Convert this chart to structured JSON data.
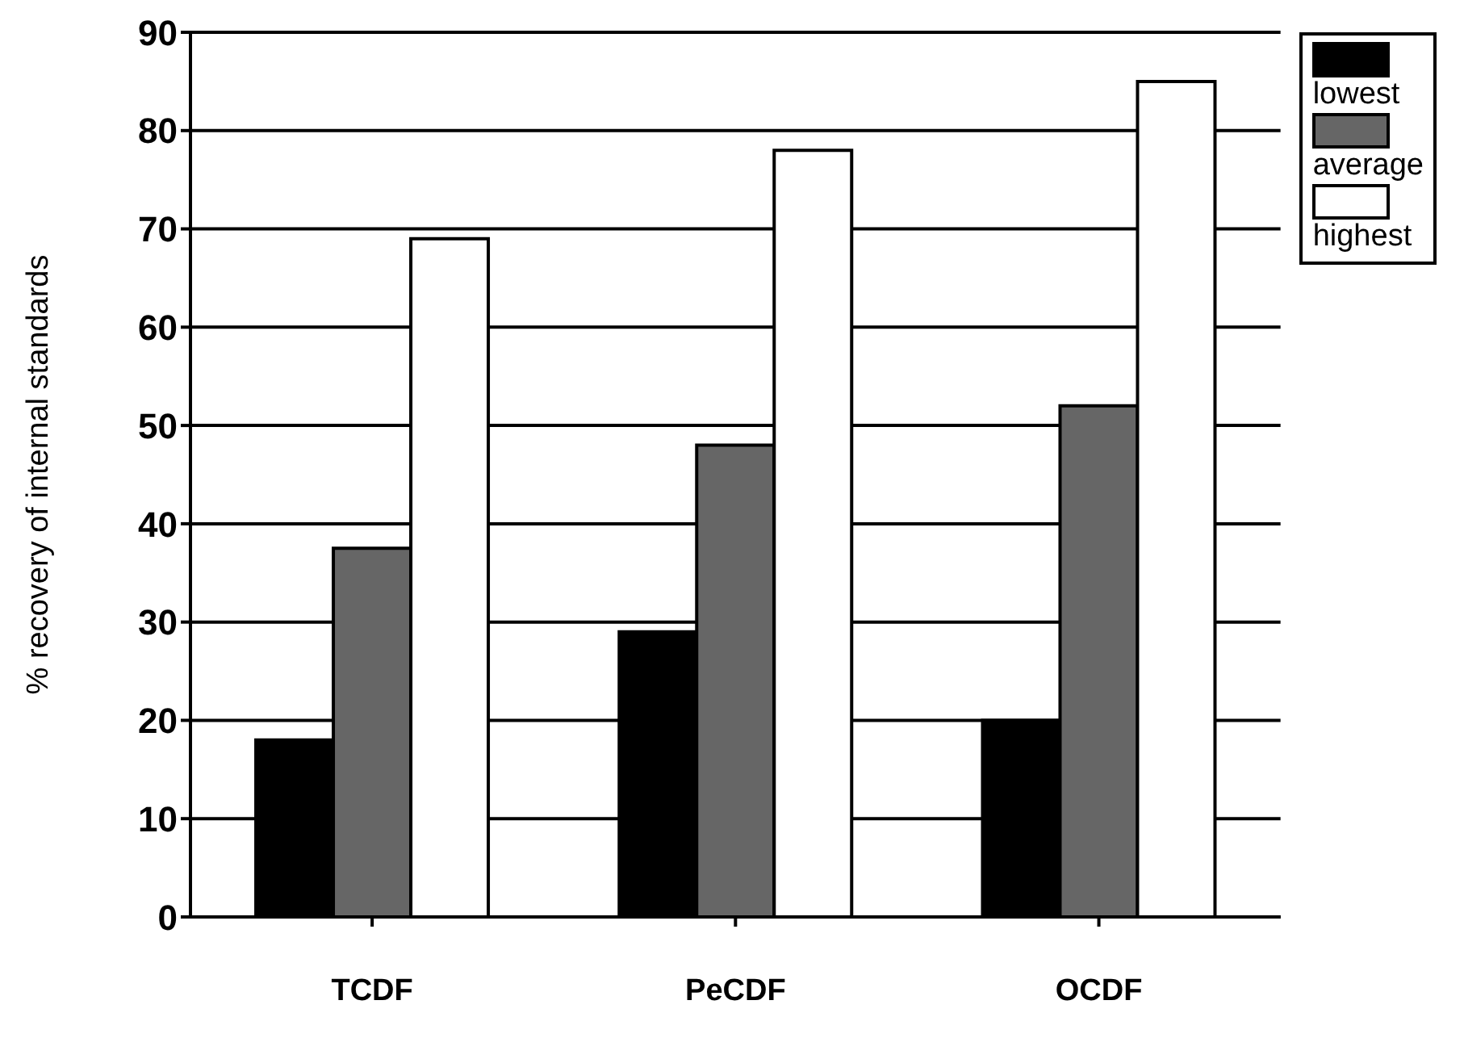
{
  "chart_data": {
    "type": "bar",
    "ylabel": "% recovery of internal standards",
    "categories": [
      "TCDF",
      "PeCDF",
      "OCDF"
    ],
    "series": [
      {
        "name": "lowest",
        "color": "#000000",
        "values": [
          18,
          29,
          20
        ]
      },
      {
        "name": "average",
        "color": "#666666",
        "values": [
          37.5,
          48,
          52
        ]
      },
      {
        "name": "highest",
        "color": "#ffffff",
        "values": [
          69,
          78,
          85
        ]
      }
    ],
    "ylim": [
      0,
      90
    ],
    "yticks": [
      0,
      10,
      20,
      30,
      40,
      50,
      60,
      70,
      80,
      90
    ],
    "grid": "y",
    "legend": "top right"
  }
}
